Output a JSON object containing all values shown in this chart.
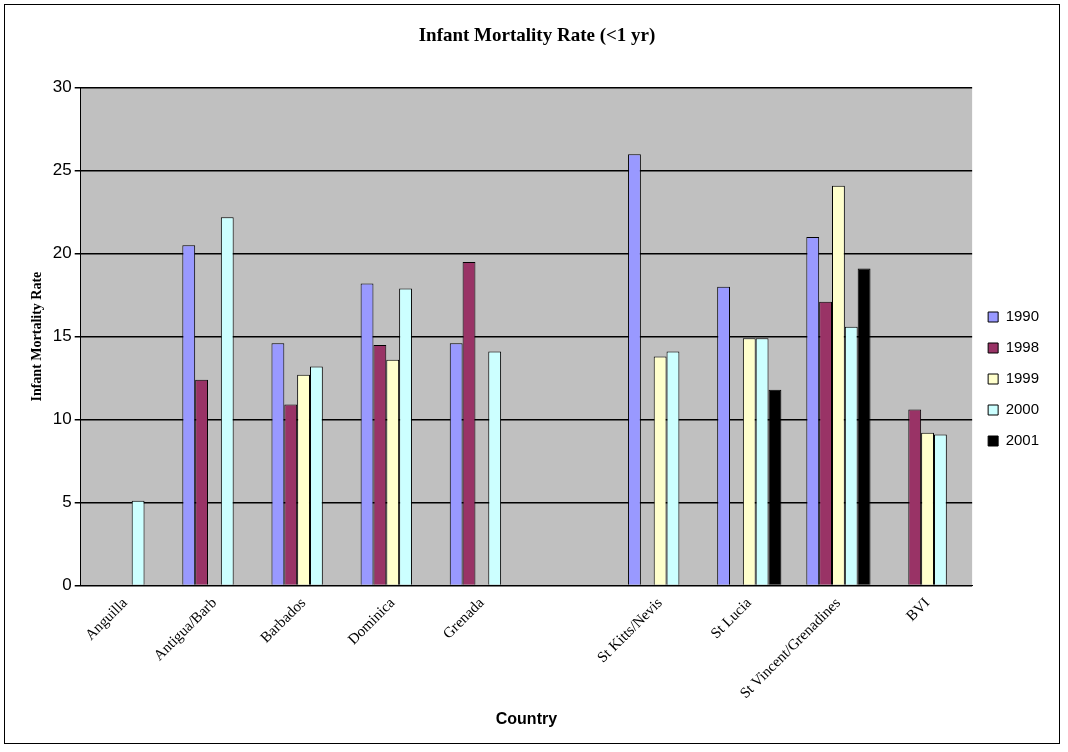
{
  "chart_data": {
    "type": "bar",
    "title": "Infant Mortality Rate (<1 yr)",
    "xlabel": "Country",
    "ylabel": "Infant Mortality Rate",
    "categories": [
      "Anguilla",
      "Antigua/Barb",
      "Barbados",
      "Dominica",
      "Grenada",
      null,
      "St Kitts/Nevis",
      "St Lucia",
      "St Vincent/Grenadines",
      "BVI"
    ],
    "series": [
      {
        "name": "1990",
        "color": "#9999ff",
        "values": [
          null,
          20.5,
          14.6,
          18.2,
          14.6,
          null,
          26.0,
          18.0,
          21.0,
          null
        ]
      },
      {
        "name": "1998",
        "color": "#993366",
        "values": [
          null,
          12.4,
          10.9,
          14.5,
          19.5,
          null,
          null,
          null,
          17.1,
          10.6
        ]
      },
      {
        "name": "1999",
        "color": "#ffffcc",
        "values": [
          null,
          null,
          12.7,
          13.6,
          null,
          null,
          13.8,
          14.9,
          24.1,
          9.2
        ]
      },
      {
        "name": "2000",
        "color": "#ccffff",
        "values": [
          5.1,
          22.2,
          13.2,
          17.9,
          14.1,
          null,
          14.1,
          14.9,
          15.6,
          9.1
        ]
      },
      {
        "name": "2001",
        "color": "#000000",
        "values": [
          null,
          null,
          null,
          null,
          null,
          null,
          null,
          11.8,
          19.1,
          null
        ]
      }
    ],
    "ylim": [
      0,
      30
    ],
    "yticks": [
      0,
      5,
      10,
      15,
      20,
      25,
      30
    ],
    "grid": "y",
    "legend": "right"
  }
}
